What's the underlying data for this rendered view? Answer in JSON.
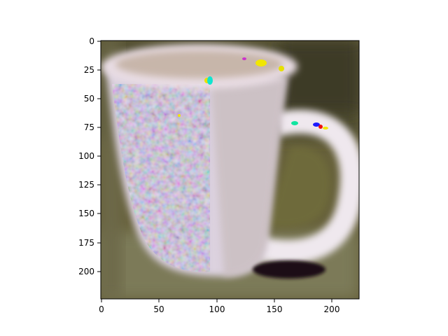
{
  "image_panel": {
    "description_icon": "coffee-mug-photo",
    "x_ticks": [
      "0",
      "50",
      "100",
      "150",
      "200"
    ],
    "y_ticks": [
      "0",
      "25",
      "50",
      "75",
      "100",
      "125",
      "150",
      "175",
      "200"
    ],
    "x_range": [
      0,
      224
    ],
    "y_range": [
      224,
      0
    ]
  },
  "colors": {
    "background_olive": "#5f5a32",
    "mug_white": "#ece8ee",
    "marker_yellow": "#f1e600",
    "marker_cyan": "#10e5d0",
    "marker_blue": "#1a1aff",
    "marker_magenta": "#cc33cc"
  }
}
